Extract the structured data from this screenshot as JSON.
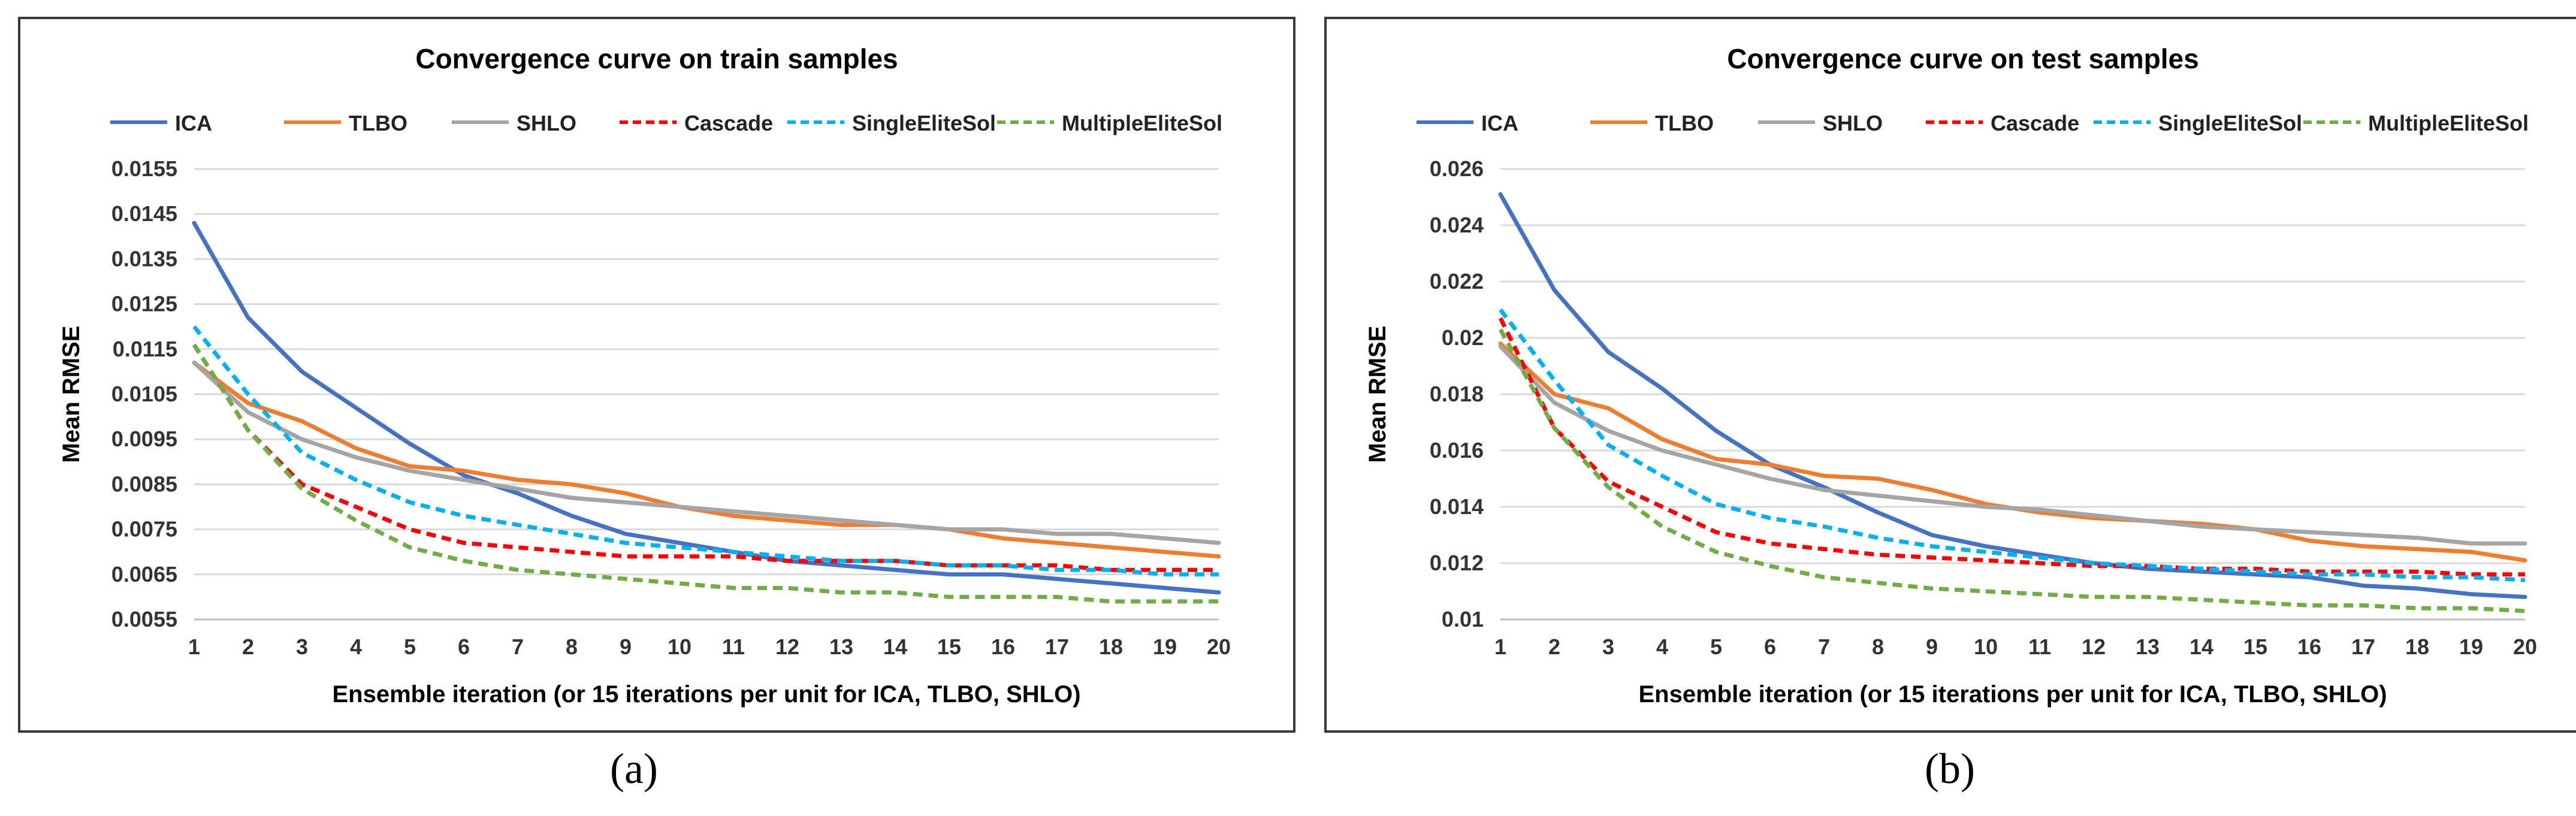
{
  "panels": [
    {
      "label": "(a)",
      "chart_data": {
        "type": "line",
        "title": "Convergence curve on train samples",
        "xlabel": "Ensemble iteration (or 15 iterations per unit for ICA, TLBO, SHLO)",
        "ylabel": "Mean RMSE",
        "x": [
          1,
          2,
          3,
          4,
          5,
          6,
          7,
          8,
          9,
          10,
          11,
          12,
          13,
          14,
          15,
          16,
          17,
          18,
          19,
          20
        ],
        "ylim": [
          0.0055,
          0.0155
        ],
        "yticks": [
          "0.0155",
          "0.0145",
          "0.0135",
          "0.0125",
          "0.0115",
          "0.0105",
          "0.0095",
          "0.0085",
          "0.0075",
          "0.0065",
          "0.0055"
        ],
        "grid": true,
        "legend_position": "top",
        "series": [
          {
            "name": "ICA",
            "color": "#4472C4",
            "dash": false,
            "values": [
              0.0143,
              0.0122,
              0.011,
              0.0102,
              0.0094,
              0.0087,
              0.0083,
              0.0078,
              0.0074,
              0.0072,
              0.007,
              0.0068,
              0.0067,
              0.0066,
              0.0065,
              0.0065,
              0.0064,
              0.0063,
              0.0062,
              0.0061
            ]
          },
          {
            "name": "TLBO",
            "color": "#ED7D31",
            "dash": false,
            "values": [
              0.0112,
              0.0103,
              0.0099,
              0.0093,
              0.0089,
              0.0088,
              0.0086,
              0.0085,
              0.0083,
              0.008,
              0.0078,
              0.0077,
              0.0076,
              0.0076,
              0.0075,
              0.0073,
              0.0072,
              0.0071,
              0.007,
              0.0069
            ]
          },
          {
            "name": "SHLO",
            "color": "#A5A5A5",
            "dash": false,
            "values": [
              0.0112,
              0.0101,
              0.0095,
              0.0091,
              0.0088,
              0.0086,
              0.0084,
              0.0082,
              0.0081,
              0.008,
              0.0079,
              0.0078,
              0.0077,
              0.0076,
              0.0075,
              0.0075,
              0.0074,
              0.0074,
              0.0073,
              0.0072
            ]
          },
          {
            "name": "Cascade",
            "color": "#FF0000",
            "dash": true,
            "values": [
              0.0116,
              0.0097,
              0.0085,
              0.008,
              0.0075,
              0.0072,
              0.0071,
              0.007,
              0.0069,
              0.0069,
              0.0069,
              0.0068,
              0.0068,
              0.0068,
              0.0067,
              0.0067,
              0.0067,
              0.0066,
              0.0066,
              0.0066
            ]
          },
          {
            "name": "SingleEliteSol",
            "color": "#00B0F0",
            "dash": true,
            "values": [
              0.012,
              0.0105,
              0.0092,
              0.0086,
              0.0081,
              0.0078,
              0.0076,
              0.0074,
              0.0072,
              0.0071,
              0.007,
              0.0069,
              0.0068,
              0.0068,
              0.0067,
              0.0067,
              0.0066,
              0.0066,
              0.0065,
              0.0065
            ]
          },
          {
            "name": "MultipleEliteSol",
            "color": "#70AD47",
            "dash": true,
            "values": [
              0.0116,
              0.0097,
              0.0084,
              0.0077,
              0.0071,
              0.0068,
              0.0066,
              0.0065,
              0.0064,
              0.0063,
              0.0062,
              0.0062,
              0.0061,
              0.0061,
              0.006,
              0.006,
              0.006,
              0.0059,
              0.0059,
              0.0059
            ]
          }
        ]
      }
    },
    {
      "label": "(b)",
      "chart_data": {
        "type": "line",
        "title": "Convergence curve on test samples",
        "xlabel": "Ensemble iteration (or 15 iterations per unit for ICA, TLBO, SHLO)",
        "ylabel": "Mean RMSE",
        "x": [
          1,
          2,
          3,
          4,
          5,
          6,
          7,
          8,
          9,
          10,
          11,
          12,
          13,
          14,
          15,
          16,
          17,
          18,
          19,
          20
        ],
        "ylim": [
          0.01,
          0.026
        ],
        "yticks": [
          "0.026",
          "0.024",
          "0.022",
          "0.02",
          "0.018",
          "0.016",
          "0.014",
          "0.012",
          "0.01"
        ],
        "grid": true,
        "legend_position": "top",
        "series": [
          {
            "name": "ICA",
            "color": "#4472C4",
            "dash": false,
            "values": [
              0.0251,
              0.0217,
              0.0195,
              0.0182,
              0.0167,
              0.0155,
              0.0147,
              0.0138,
              0.013,
              0.0126,
              0.0123,
              0.012,
              0.0118,
              0.0117,
              0.0116,
              0.0115,
              0.0112,
              0.0111,
              0.0109,
              0.0108
            ]
          },
          {
            "name": "TLBO",
            "color": "#ED7D31",
            "dash": false,
            "values": [
              0.0198,
              0.018,
              0.0175,
              0.0164,
              0.0157,
              0.0155,
              0.0151,
              0.015,
              0.0146,
              0.0141,
              0.0138,
              0.0136,
              0.0135,
              0.0134,
              0.0132,
              0.0128,
              0.0126,
              0.0125,
              0.0124,
              0.0121
            ]
          },
          {
            "name": "SHLO",
            "color": "#A5A5A5",
            "dash": false,
            "values": [
              0.0197,
              0.0177,
              0.0167,
              0.016,
              0.0155,
              0.015,
              0.0146,
              0.0144,
              0.0142,
              0.014,
              0.0139,
              0.0137,
              0.0135,
              0.0133,
              0.0132,
              0.0131,
              0.013,
              0.0129,
              0.0127,
              0.0127
            ]
          },
          {
            "name": "Cascade",
            "color": "#FF0000",
            "dash": true,
            "values": [
              0.0207,
              0.0168,
              0.0149,
              0.014,
              0.0131,
              0.0127,
              0.0125,
              0.0123,
              0.0122,
              0.0121,
              0.012,
              0.0119,
              0.0119,
              0.0118,
              0.0118,
              0.0117,
              0.0117,
              0.0117,
              0.0116,
              0.0116
            ]
          },
          {
            "name": "SingleEliteSol",
            "color": "#00B0F0",
            "dash": true,
            "values": [
              0.021,
              0.0185,
              0.0162,
              0.0151,
              0.0141,
              0.0136,
              0.0133,
              0.0129,
              0.0126,
              0.0124,
              0.0122,
              0.012,
              0.0119,
              0.0118,
              0.0117,
              0.0116,
              0.0116,
              0.0115,
              0.0115,
              0.0114
            ]
          },
          {
            "name": "MultipleEliteSol",
            "color": "#70AD47",
            "dash": true,
            "values": [
              0.0203,
              0.0168,
              0.0147,
              0.0133,
              0.0124,
              0.0119,
              0.0115,
              0.0113,
              0.0111,
              0.011,
              0.0109,
              0.0108,
              0.0108,
              0.0107,
              0.0106,
              0.0105,
              0.0105,
              0.0104,
              0.0104,
              0.0103
            ]
          }
        ]
      }
    }
  ]
}
